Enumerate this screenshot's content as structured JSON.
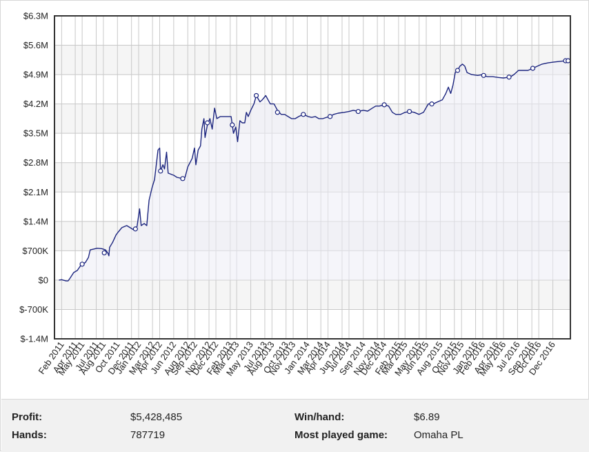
{
  "chart_data": {
    "type": "line",
    "series": [
      {
        "points": [
          [
            "2011-01-20",
            0
          ],
          [
            "2011-02-01",
            10000
          ],
          [
            "2011-02-20",
            -20000
          ],
          [
            "2011-03-01",
            -20000
          ],
          [
            "2011-03-10",
            50000
          ],
          [
            "2011-03-25",
            180000
          ],
          [
            "2011-04-10",
            230000
          ],
          [
            "2011-04-25",
            350000
          ],
          [
            "2011-05-15",
            420000
          ],
          [
            "2011-05-28",
            540000
          ],
          [
            "2011-06-05",
            720000
          ],
          [
            "2011-06-20",
            740000
          ],
          [
            "2011-07-05",
            760000
          ],
          [
            "2011-07-25",
            750000
          ],
          [
            "2011-08-10",
            720000
          ],
          [
            "2011-08-20",
            650000
          ],
          [
            "2011-08-25",
            580000
          ],
          [
            "2011-08-28",
            780000
          ],
          [
            "2011-09-10",
            900000
          ],
          [
            "2011-09-25",
            1080000
          ],
          [
            "2011-10-05",
            1150000
          ],
          [
            "2011-10-20",
            1250000
          ],
          [
            "2011-11-10",
            1300000
          ],
          [
            "2011-11-25",
            1250000
          ],
          [
            "2011-12-10",
            1200000
          ],
          [
            "2011-12-25",
            1280000
          ],
          [
            "2012-01-05",
            1700000
          ],
          [
            "2012-01-12",
            1300000
          ],
          [
            "2012-01-25",
            1350000
          ],
          [
            "2012-02-05",
            1300000
          ],
          [
            "2012-02-15",
            1900000
          ],
          [
            "2012-02-28",
            2200000
          ],
          [
            "2012-03-10",
            2400000
          ],
          [
            "2012-03-25",
            3100000
          ],
          [
            "2012-04-01",
            3150000
          ],
          [
            "2012-04-05",
            2600000
          ],
          [
            "2012-04-15",
            2750000
          ],
          [
            "2012-04-22",
            2650000
          ],
          [
            "2012-05-01",
            3050000
          ],
          [
            "2012-05-08",
            2550000
          ],
          [
            "2012-06-01",
            2500000
          ],
          [
            "2012-06-15",
            2450000
          ],
          [
            "2012-07-10",
            2420000
          ],
          [
            "2012-07-20",
            2450000
          ],
          [
            "2012-08-01",
            2700000
          ],
          [
            "2012-08-20",
            2900000
          ],
          [
            "2012-08-30",
            3150000
          ],
          [
            "2012-09-05",
            2750000
          ],
          [
            "2012-09-15",
            3100000
          ],
          [
            "2012-09-25",
            3200000
          ],
          [
            "2012-10-01",
            3600000
          ],
          [
            "2012-10-10",
            3850000
          ],
          [
            "2012-10-15",
            3400000
          ],
          [
            "2012-10-25",
            3700000
          ],
          [
            "2012-11-05",
            3850000
          ],
          [
            "2012-11-15",
            3600000
          ],
          [
            "2012-11-25",
            4100000
          ],
          [
            "2012-12-05",
            3850000
          ],
          [
            "2012-12-20",
            3900000
          ],
          [
            "2013-01-10",
            3900000
          ],
          [
            "2013-02-05",
            3900000
          ],
          [
            "2013-02-15",
            3500000
          ],
          [
            "2013-02-25",
            3650000
          ],
          [
            "2013-03-05",
            3300000
          ],
          [
            "2013-03-15",
            3800000
          ],
          [
            "2013-03-25",
            3750000
          ],
          [
            "2013-04-05",
            3750000
          ],
          [
            "2013-04-12",
            4000000
          ],
          [
            "2013-04-20",
            3900000
          ],
          [
            "2013-05-01",
            4050000
          ],
          [
            "2013-05-15",
            4200000
          ],
          [
            "2013-05-25",
            4400000
          ],
          [
            "2013-06-10",
            4250000
          ],
          [
            "2013-06-20",
            4300000
          ],
          [
            "2013-07-05",
            4400000
          ],
          [
            "2013-07-15",
            4300000
          ],
          [
            "2013-07-25",
            4200000
          ],
          [
            "2013-08-10",
            4200000
          ],
          [
            "2013-08-25",
            4050000
          ],
          [
            "2013-09-10",
            3950000
          ],
          [
            "2013-09-25",
            3950000
          ],
          [
            "2013-10-10",
            3900000
          ],
          [
            "2013-10-25",
            3850000
          ],
          [
            "2013-11-10",
            3850000
          ],
          [
            "2013-11-25",
            3900000
          ],
          [
            "2013-12-15",
            3950000
          ],
          [
            "2014-01-05",
            3900000
          ],
          [
            "2014-01-20",
            3880000
          ],
          [
            "2014-02-05",
            3900000
          ],
          [
            "2014-02-20",
            3850000
          ],
          [
            "2014-03-10",
            3850000
          ],
          [
            "2014-03-25",
            3880000
          ],
          [
            "2014-04-10",
            3900000
          ],
          [
            "2014-04-25",
            3950000
          ],
          [
            "2014-05-15",
            3980000
          ],
          [
            "2014-06-10",
            4000000
          ],
          [
            "2014-07-01",
            4020000
          ],
          [
            "2014-07-20",
            4050000
          ],
          [
            "2014-08-10",
            4020000
          ],
          [
            "2014-09-01",
            4050000
          ],
          [
            "2014-09-20",
            4030000
          ],
          [
            "2014-10-10",
            4100000
          ],
          [
            "2014-10-25",
            4150000
          ],
          [
            "2014-11-10",
            4150000
          ],
          [
            "2014-12-01",
            4180000
          ],
          [
            "2014-12-20",
            4150000
          ],
          [
            "2015-01-05",
            4000000
          ],
          [
            "2015-01-20",
            3950000
          ],
          [
            "2015-02-10",
            3950000
          ],
          [
            "2015-03-01",
            4000000
          ],
          [
            "2015-03-20",
            4020000
          ],
          [
            "2015-04-10",
            4000000
          ],
          [
            "2015-05-01",
            3950000
          ],
          [
            "2015-05-20",
            4000000
          ],
          [
            "2015-06-10",
            4200000
          ],
          [
            "2015-07-01",
            4200000
          ],
          [
            "2015-07-20",
            4250000
          ],
          [
            "2015-08-10",
            4300000
          ],
          [
            "2015-08-25",
            4450000
          ],
          [
            "2015-09-05",
            4600000
          ],
          [
            "2015-09-15",
            4450000
          ],
          [
            "2015-09-25",
            4650000
          ],
          [
            "2015-10-05",
            4950000
          ],
          [
            "2015-10-15",
            5000000
          ],
          [
            "2015-10-25",
            5100000
          ],
          [
            "2015-11-05",
            5150000
          ],
          [
            "2015-11-15",
            5100000
          ],
          [
            "2015-11-25",
            4950000
          ],
          [
            "2015-12-15",
            4900000
          ],
          [
            "2016-01-10",
            4880000
          ],
          [
            "2016-02-01",
            4900000
          ],
          [
            "2016-02-20",
            4850000
          ],
          [
            "2016-03-15",
            4850000
          ],
          [
            "2016-04-10",
            4830000
          ],
          [
            "2016-05-01",
            4820000
          ],
          [
            "2016-05-15",
            4830000
          ],
          [
            "2016-06-01",
            4850000
          ],
          [
            "2016-06-15",
            4900000
          ],
          [
            "2016-07-05",
            5000000
          ],
          [
            "2016-07-25",
            5000000
          ],
          [
            "2016-08-15",
            5000000
          ],
          [
            "2016-09-05",
            5050000
          ],
          [
            "2016-09-25",
            5100000
          ],
          [
            "2016-10-15",
            5150000
          ],
          [
            "2016-11-10",
            5180000
          ],
          [
            "2016-12-05",
            5200000
          ],
          [
            "2017-01-10",
            5220000
          ],
          [
            "2017-02-05",
            5230000
          ]
        ],
        "markers": [
          [
            "2011-05-01",
            380000
          ],
          [
            "2011-08-05",
            650000
          ],
          [
            "2011-12-18",
            1220000
          ],
          [
            "2012-04-05",
            2600000
          ],
          [
            "2012-07-10",
            2420000
          ],
          [
            "2012-10-25",
            3750000
          ],
          [
            "2013-02-10",
            3700000
          ],
          [
            "2013-05-25",
            4400000
          ],
          [
            "2013-08-25",
            4000000
          ],
          [
            "2013-12-15",
            3950000
          ],
          [
            "2014-04-10",
            3900000
          ],
          [
            "2014-08-10",
            4020000
          ],
          [
            "2014-12-01",
            4180000
          ],
          [
            "2015-03-20",
            4020000
          ],
          [
            "2015-06-25",
            4200000
          ],
          [
            "2015-10-15",
            5000000
          ],
          [
            "2016-02-05",
            4880000
          ],
          [
            "2016-05-25",
            4840000
          ],
          [
            "2016-09-05",
            5050000
          ],
          [
            "2017-01-25",
            5230000
          ],
          [
            "2017-02-05",
            5230000
          ]
        ]
      }
    ],
    "x_range": [
      "2011-01-01",
      "2017-02-15"
    ],
    "ylim": [
      -1400000,
      6300000
    ],
    "y_ticks": [
      {
        "value": 6300000,
        "label": "$6.3M"
      },
      {
        "value": 5600000,
        "label": "$5.6M"
      },
      {
        "value": 4900000,
        "label": "$4.9M"
      },
      {
        "value": 4200000,
        "label": "$4.2M"
      },
      {
        "value": 3500000,
        "label": "$3.5M"
      },
      {
        "value": 2800000,
        "label": "$2.8M"
      },
      {
        "value": 2100000,
        "label": "$2.1M"
      },
      {
        "value": 1400000,
        "label": "$1.4M"
      },
      {
        "value": 700000,
        "label": "$700K"
      },
      {
        "value": 0,
        "label": "$0"
      },
      {
        "value": -700000,
        "label": "$-700K"
      },
      {
        "value": -1400000,
        "label": "$-1.4M"
      }
    ],
    "x_ticks": [
      {
        "date": "2011-02-01",
        "label": "Feb 2011"
      },
      {
        "date": "2011-04-01",
        "label": "Apr 2011"
      },
      {
        "date": "2011-05-01",
        "label": "May 2011"
      },
      {
        "date": "2011-07-01",
        "label": "Jul 2011"
      },
      {
        "date": "2011-08-01",
        "label": "Aug 2011"
      },
      {
        "date": "2011-10-01",
        "label": "Oct 2011"
      },
      {
        "date": "2011-12-01",
        "label": "Dec 2011"
      },
      {
        "date": "2012-01-01",
        "label": "Jan 2012"
      },
      {
        "date": "2012-03-01",
        "label": "Mar 2012"
      },
      {
        "date": "2012-04-01",
        "label": "Apr 2012"
      },
      {
        "date": "2012-06-01",
        "label": "Jun 2012"
      },
      {
        "date": "2012-08-01",
        "label": "Aug 2012"
      },
      {
        "date": "2012-09-01",
        "label": "Sep 2012"
      },
      {
        "date": "2012-11-01",
        "label": "Nov 2012"
      },
      {
        "date": "2012-12-01",
        "label": "Dec 2012"
      },
      {
        "date": "2013-02-01",
        "label": "Feb 2013"
      },
      {
        "date": "2013-03-01",
        "label": "Mar 2013"
      },
      {
        "date": "2013-05-01",
        "label": "May 2013"
      },
      {
        "date": "2013-07-01",
        "label": "Jul 2013"
      },
      {
        "date": "2013-08-01",
        "label": "Aug 2013"
      },
      {
        "date": "2013-10-01",
        "label": "Oct 2013"
      },
      {
        "date": "2013-11-01",
        "label": "Nov 2013"
      },
      {
        "date": "2014-01-01",
        "label": "Jan 2014"
      },
      {
        "date": "2014-03-01",
        "label": "Mar 2014"
      },
      {
        "date": "2014-04-01",
        "label": "Apr 2014"
      },
      {
        "date": "2014-06-01",
        "label": "Jun 2014"
      },
      {
        "date": "2014-07-01",
        "label": "Jul 2014"
      },
      {
        "date": "2014-09-01",
        "label": "Sep 2014"
      },
      {
        "date": "2014-11-01",
        "label": "Nov 2014"
      },
      {
        "date": "2014-12-01",
        "label": "Dec 2014"
      },
      {
        "date": "2015-02-01",
        "label": "Feb 2015"
      },
      {
        "date": "2015-03-01",
        "label": "Mar 2015"
      },
      {
        "date": "2015-05-01",
        "label": "May 2015"
      },
      {
        "date": "2015-06-01",
        "label": "Jun 2015"
      },
      {
        "date": "2015-08-01",
        "label": "Aug 2015"
      },
      {
        "date": "2015-10-01",
        "label": "Oct 2015"
      },
      {
        "date": "2015-11-01",
        "label": "Nov 2015"
      },
      {
        "date": "2016-01-01",
        "label": "Jan 2016"
      },
      {
        "date": "2016-02-01",
        "label": "Feb 2016"
      },
      {
        "date": "2016-04-01",
        "label": "Apr 2016"
      },
      {
        "date": "2016-05-01",
        "label": "May 2016"
      },
      {
        "date": "2016-07-01",
        "label": "Jul 2016"
      },
      {
        "date": "2016-09-01",
        "label": "Sep 2016"
      },
      {
        "date": "2016-10-01",
        "label": "Oct 2016"
      },
      {
        "date": "2016-12-01",
        "label": "Dec 2016"
      }
    ],
    "grid": true,
    "colors": {
      "line": "#1a237e",
      "fill": "#ecedf6",
      "band": "#f5f5f5",
      "grid": "#c8c8c8",
      "frame": "#333333"
    }
  },
  "stats": {
    "profit_label": "Profit:",
    "profit_value": "$5,428,485",
    "hands_label": "Hands:",
    "hands_value": "787719",
    "winhand_label": "Win/hand:",
    "winhand_value": "$6.89",
    "game_label": "Most played game:",
    "game_value": "Omaha PL"
  }
}
